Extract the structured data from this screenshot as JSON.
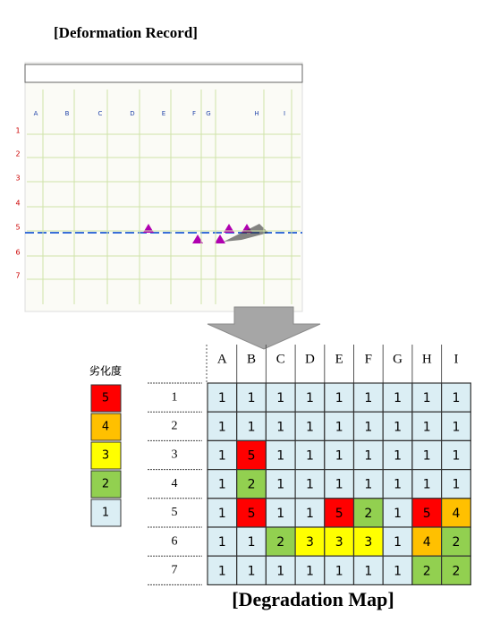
{
  "header": {
    "title": "[Deformation Record]"
  },
  "record": {
    "columns": [
      "A",
      "B",
      "C",
      "D",
      "E",
      "F",
      "G",
      "H",
      "I"
    ],
    "rows": [
      "1",
      "2",
      "3",
      "4",
      "5",
      "6",
      "7"
    ]
  },
  "legend": {
    "title": "劣化度",
    "levels": [
      {
        "label": "5",
        "color": "#ff0000"
      },
      {
        "label": "4",
        "color": "#ffc000"
      },
      {
        "label": "3",
        "color": "#ffff00"
      },
      {
        "label": "2",
        "color": "#92d050"
      },
      {
        "label": "1",
        "color": "#dbeef4"
      }
    ]
  },
  "table": {
    "columns": [
      "A",
      "B",
      "C",
      "D",
      "E",
      "F",
      "G",
      "H",
      "I"
    ],
    "row_labels": [
      "1",
      "2",
      "3",
      "4",
      "5",
      "6",
      "7"
    ],
    "rows": [
      [
        1,
        1,
        1,
        1,
        1,
        1,
        1,
        1,
        1
      ],
      [
        1,
        1,
        1,
        1,
        1,
        1,
        1,
        1,
        1
      ],
      [
        1,
        5,
        1,
        1,
        1,
        1,
        1,
        1,
        1
      ],
      [
        1,
        2,
        1,
        1,
        1,
        1,
        1,
        1,
        1
      ],
      [
        1,
        5,
        1,
        1,
        5,
        2,
        1,
        5,
        4
      ],
      [
        1,
        1,
        2,
        3,
        3,
        3,
        1,
        4,
        2
      ],
      [
        1,
        1,
        1,
        1,
        1,
        1,
        1,
        2,
        2
      ]
    ]
  },
  "caption": "[Degradation Map]"
}
